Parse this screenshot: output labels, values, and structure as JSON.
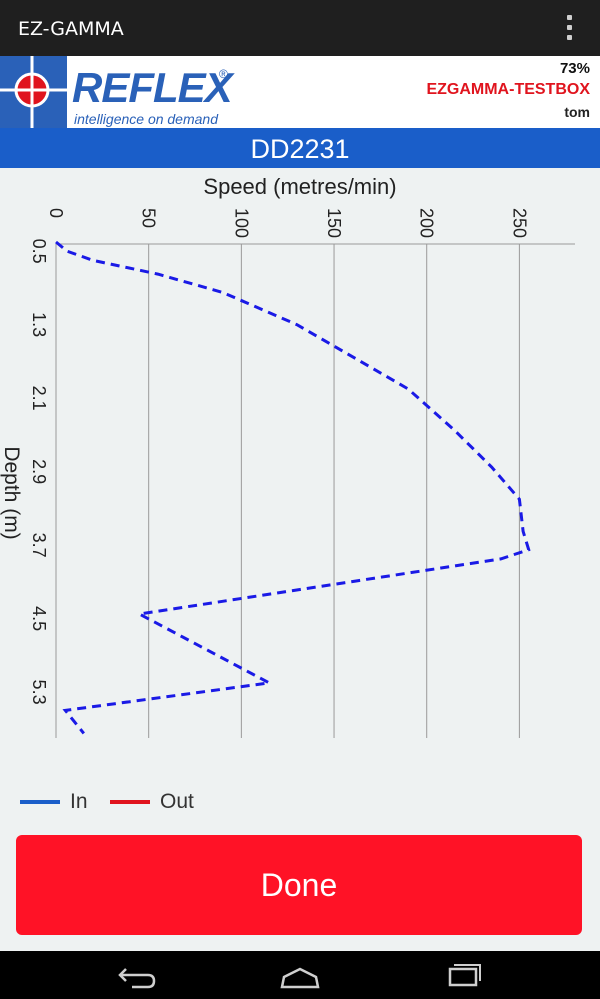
{
  "app": {
    "title": "EZ-GAMMA"
  },
  "brand": {
    "wordmark": "REFLEX",
    "registered": "®",
    "tagline": "intelligence on demand",
    "battery": "73%",
    "device": "EZGAMMA-TESTBOX",
    "user": "tom"
  },
  "hole": {
    "id": "DD2231"
  },
  "chart_data": {
    "type": "line",
    "orientation": "depth-down",
    "xlabel": "Speed (metres/min)",
    "ylabel": "Depth (m)",
    "xlim": [
      0,
      280
    ],
    "ylim": [
      0.4,
      5.8
    ],
    "x_ticks": [
      "0",
      "50",
      "100",
      "150",
      "200",
      "250"
    ],
    "x_tick_values": [
      0,
      50,
      100,
      150,
      200,
      250
    ],
    "y_ticks": [
      "0.5",
      "1.3",
      "2.1",
      "2.9",
      "3.7",
      "4.5",
      "5.3"
    ],
    "y_tick_values": [
      0.5,
      1.3,
      2.1,
      2.9,
      3.7,
      4.5,
      5.3
    ],
    "grid": "vertical",
    "series": [
      {
        "name": "In",
        "color": "#1a1ae6",
        "style": "dashed",
        "points": [
          [
            0,
            0.4
          ],
          [
            6,
            0.5
          ],
          [
            20,
            0.6
          ],
          [
            55,
            0.75
          ],
          [
            90,
            0.95
          ],
          [
            130,
            1.3
          ],
          [
            160,
            1.65
          ],
          [
            190,
            2.0
          ],
          [
            215,
            2.45
          ],
          [
            235,
            2.85
          ],
          [
            250,
            3.2
          ],
          [
            252,
            3.55
          ],
          [
            255,
            3.75
          ],
          [
            240,
            3.85
          ],
          [
            45,
            4.45
          ],
          [
            115,
            5.2
          ],
          [
            5,
            5.5
          ],
          [
            15,
            5.75
          ]
        ]
      },
      {
        "name": "Out",
        "color": "#e0141e",
        "style": "solid",
        "points": []
      }
    ]
  },
  "legend": {
    "items": [
      {
        "label": "In",
        "color": "#1a5ec9"
      },
      {
        "label": "Out",
        "color": "#e0141e"
      }
    ]
  },
  "actions": {
    "done_label": "Done"
  },
  "nav": {
    "icons": [
      "back-icon",
      "home-icon",
      "recents-icon"
    ]
  }
}
